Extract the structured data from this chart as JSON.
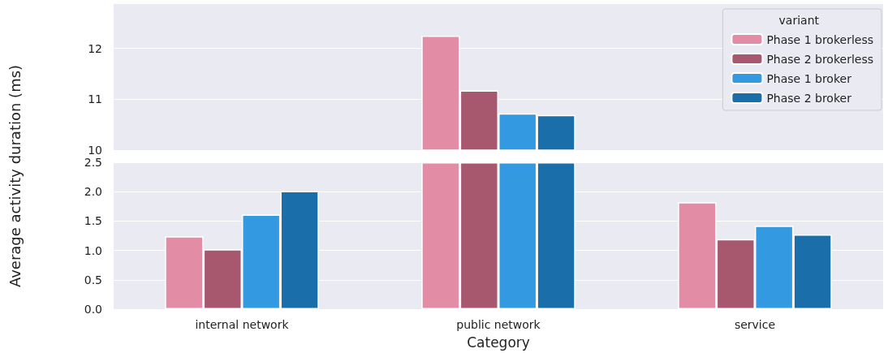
{
  "chart_data": [
    {
      "type": "bar",
      "ylabel": "Average activity duration (ms)",
      "legend_title": "variant",
      "legend": "top right",
      "grid": "y",
      "tick_labels": "y",
      "ylim": [
        10,
        12.87
      ],
      "yticks": [
        10,
        11,
        12
      ],
      "series": [
        {
          "name": "Phase 1 brokerless",
          "color": "#e28ca5",
          "values": [
            null,
            12.25,
            null
          ]
        },
        {
          "name": "Phase 2 brokerless",
          "color": "#a7586f",
          "values": [
            null,
            11.17,
            null
          ]
        },
        {
          "name": "Phase 1 broker",
          "color": "#3399e0",
          "values": [
            null,
            10.72,
            null
          ]
        },
        {
          "name": "Phase 2 broker",
          "color": "#1a6fab",
          "values": [
            null,
            10.69,
            null
          ]
        }
      ]
    },
    {
      "type": "bar",
      "xlabel": "Category",
      "grid": "y",
      "categories": [
        "internal network",
        "public network",
        "service"
      ],
      "ylim": [
        0,
        2.5
      ],
      "yticks": [
        {
          "value": 0,
          "label": "0.0"
        },
        0.5,
        {
          "value": 1,
          "label": "1.0"
        },
        1.5,
        {
          "value": 2,
          "label": "2.0"
        },
        2.5
      ],
      "series": [
        {
          "color": "#e28ca5",
          "values": [
            1.24,
            2.5,
            1.82
          ]
        },
        {
          "color": "#a7586f",
          "values": [
            1.02,
            2.5,
            1.19
          ]
        },
        {
          "color": "#3399e0",
          "values": [
            1.61,
            2.5,
            1.42
          ]
        },
        {
          "color": "#1a6fab",
          "values": [
            2.01,
            2.5,
            1.27
          ]
        }
      ]
    }
  ]
}
